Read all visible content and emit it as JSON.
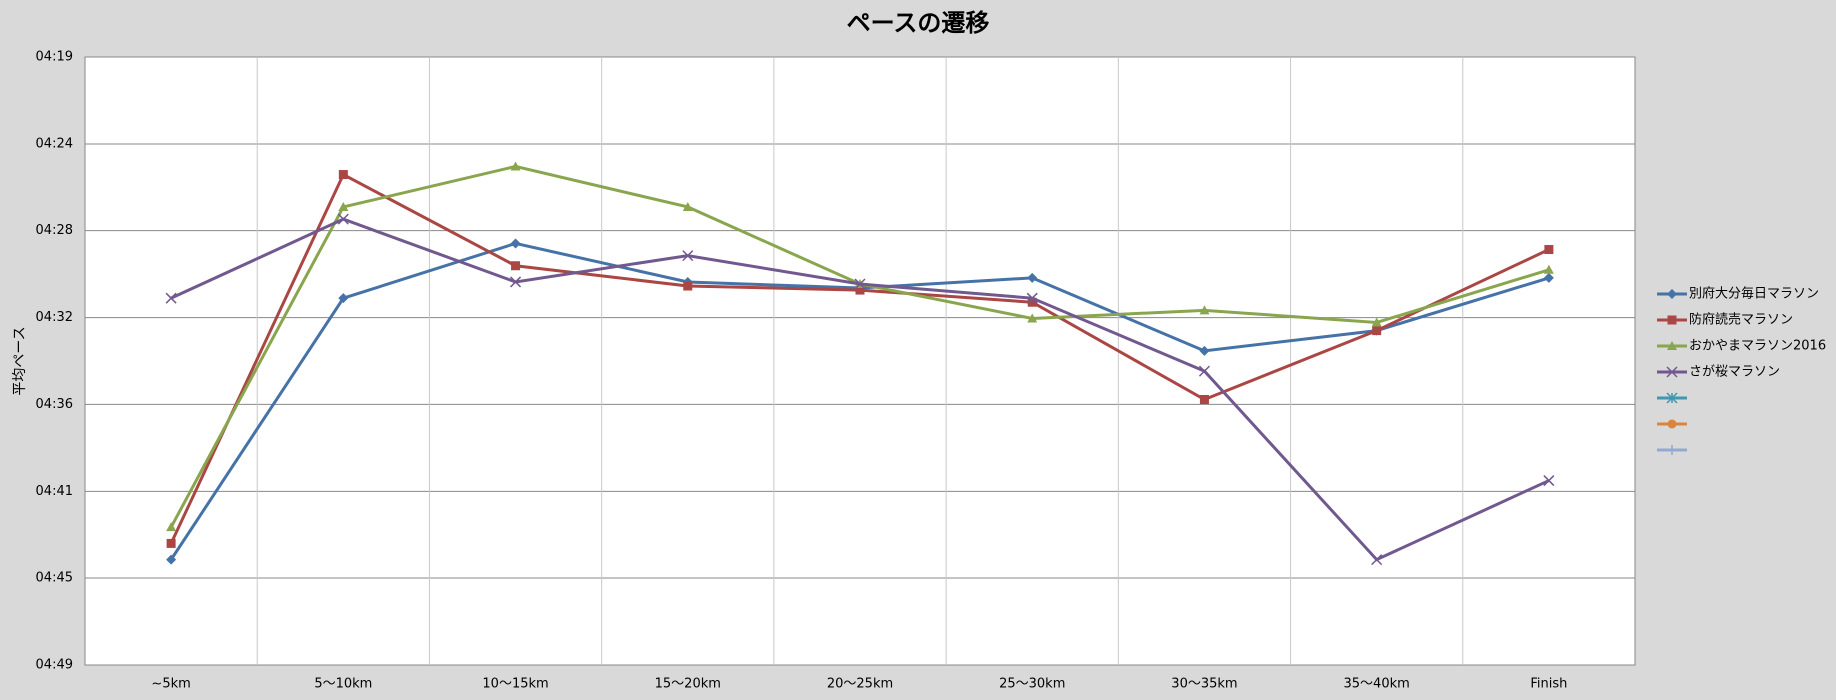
{
  "chart_data": {
    "type": "line",
    "title": "ペースの遷移",
    "y_label": "平均ペース",
    "categories": [
      "~5km",
      "5〜10km",
      "10〜15km",
      "15〜20km",
      "20〜25km",
      "25〜30km",
      "30〜35km",
      "35〜40km",
      "Finish"
    ],
    "series": [
      {
        "name": "別府大分毎日マラソン",
        "color": "#4572a7",
        "marker": "diamond",
        "values": [
          284.1,
          271.2,
          268.5,
          270.4,
          270.7,
          270.2,
          273.8,
          272.8,
          270.2
        ]
      },
      {
        "name": "防府読売マラソン",
        "color": "#aa4643",
        "marker": "square",
        "values": [
          283.3,
          265.1,
          269.6,
          270.6,
          270.8,
          271.4,
          276.2,
          272.8,
          268.8
        ]
      },
      {
        "name": "おかやまマラソン2016",
        "color": "#89a54e",
        "marker": "triangle",
        "values": [
          282.5,
          266.7,
          264.7,
          266.7,
          270.5,
          272.2,
          271.8,
          272.4,
          269.8
        ]
      },
      {
        "name": "さが桜マラソン",
        "color": "#71588f",
        "marker": "x",
        "values": [
          271.2,
          267.3,
          270.4,
          269.1,
          270.5,
          271.2,
          274.8,
          284.1,
          280.2
        ]
      },
      {
        "name": null,
        "color": "#4198af",
        "marker": "star",
        "values": [
          null,
          null,
          null,
          null,
          null,
          null,
          null,
          null,
          null
        ]
      },
      {
        "name": null,
        "color": "#db843d",
        "marker": "circle",
        "values": [
          null,
          null,
          null,
          null,
          null,
          null,
          null,
          null,
          null
        ]
      },
      {
        "name": null,
        "color": "#93a9cf",
        "marker": "plus",
        "values": [
          null,
          null,
          null,
          null,
          null,
          null,
          null,
          null,
          null
        ]
      }
    ],
    "ylim": [
      259.3,
      289.3
    ],
    "y_reversed": true,
    "yticks": [
      {
        "value": 259.3,
        "label": "04:19"
      },
      {
        "value": 263.59,
        "label": "04:24"
      },
      {
        "value": 267.87,
        "label": "04:28"
      },
      {
        "value": 272.16,
        "label": "04:32"
      },
      {
        "value": 276.44,
        "label": "04:36"
      },
      {
        "value": 280.73,
        "label": "04:41"
      },
      {
        "value": 285.01,
        "label": "04:45"
      },
      {
        "value": 289.3,
        "label": "04:49"
      }
    ],
    "grid": true,
    "legend": "right"
  }
}
